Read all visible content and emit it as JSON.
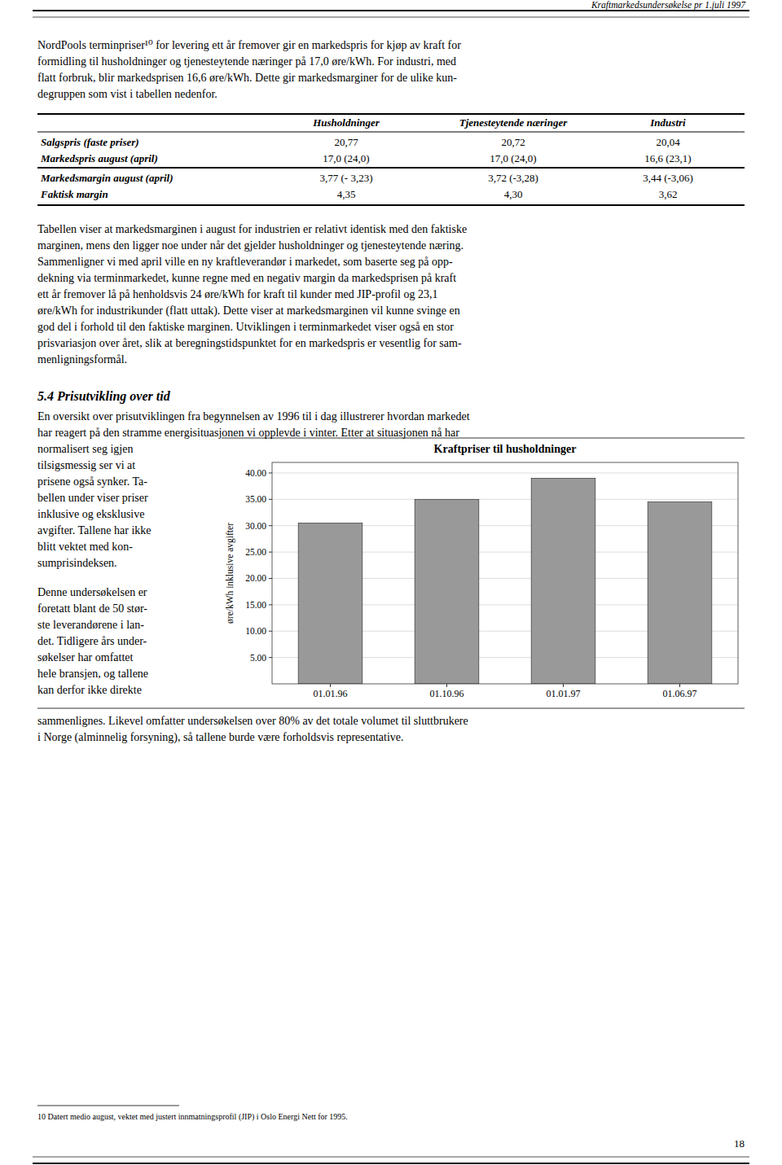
{
  "header_text": "Kraftmarkedsundersøkelse pr 1.juli 1997",
  "page_number": "18",
  "intro_lines": [
    "NordPools terminpriser¹⁰ for levering ett år fremover gir en markedspris for kjøp av kraft for",
    "formidling til husholdninger og tjenesteytende næringer på 17,0 øre/kWh. For industri, med",
    "flatt forbruk, blir markedsprisen 16,6 øre/kWh. Dette gir markedsmarginer for de ulike kun-",
    "degruppen som vist i tabellen nedenfor."
  ],
  "table": {
    "col_headers": [
      "Husholdninger",
      "Tjenesteytende næringer",
      "Industri"
    ],
    "rows": [
      {
        "label": "Salgspris (faste priser)",
        "hush": "20,77",
        "tjen": "20,72",
        "ind": "20,04"
      },
      {
        "label": "Markedspris august (april)",
        "hush": "17,0 (24,0)",
        "tjen": "17,0 (24,0)",
        "ind": "16,6 (23,1)"
      },
      {
        "label": "Markedsmargin august (april)",
        "hush": "3,77 (- 3,23)",
        "tjen": "3,72 (-3,28)",
        "ind": "3,44 (-3,06)",
        "separator_above": true
      },
      {
        "label": "Faktisk margin",
        "hush": "4,35",
        "tjen": "4,30",
        "ind": "3,62"
      }
    ]
  },
  "body1_lines": [
    "Tabellen viser at markedsmarginen i august for industrien er relativt identisk med den faktiske",
    "marginen, mens den ligger noe under når det gjelder husholdninger og tjenesteytende næring.",
    "Sammenligner vi med april ville en ny kraftleverandør i markedet, som baserte seg på opp-",
    "dekning via terminmarkedet, kunne regne med en negativ margin da markedsprisen på kraft",
    "ett år fremover lå på henholdsvis 24 øre/kWh for kraft til kunder med JIP-profil og 23,1",
    "øre/kWh for industrikunder (flatt uttak). Dette viser at markedsmarginen vil kunne svinge en",
    "god del i forhold til den faktiske marginen. Utviklingen i terminmarkedet viser også en stor",
    "prisvariasjon over året, slik at beregningstidspunktet for en markedspris er vesentlig for sam-",
    "menligningsformål."
  ],
  "section_header": "5.4  Prisutvikling over tid",
  "sec_para_lines": [
    "En oversikt over prisutviklingen fra begynnelsen av 1996 til i dag illustrerer hvordan markedet",
    "har reagert på den stramme energisituasjonen vi opplevde i vinter. Etter at situasjonen nå har"
  ],
  "left_col_lines_1": [
    "normalisert seg igjen",
    "tilsigsmessig ser vi at",
    "prisene også synker. Ta-",
    "bellen under viser priser",
    "inklusive og eksklusive",
    "avgifter. Tallene har ikke",
    "blitt vektet med kon-",
    "sumprisindeksen."
  ],
  "left_col_lines_2": [
    "Denne undersøkelsen er",
    "foretatt blant de 50 stør-",
    "ste leverandørene i lan-",
    "det. Tidligere års under-",
    "søkelser har omfattet",
    "hele bransjen, og tallene",
    "kan derfor ikke direkte"
  ],
  "bottom_lines": [
    "sammenlignes. Likevel omfatter undersøkelsen over 80% av det totale volumet til sluttbrukere",
    "i Norge (alminnelig forsyning), så tallene burde være forholdsvis representative."
  ],
  "footnote": "10 Datert medio august, vektet med justert innmatningsprofil (JIP) i Oslo Energi Nett for 1995.",
  "chart_data": {
    "type": "bar",
    "title": "Kraftpriser til husholdninger",
    "ylabel": "øre/kWh inklusive avgifter",
    "categories": [
      "01.01.96",
      "01.10.96",
      "01.01.97",
      "01.06.97"
    ],
    "values": [
      30.5,
      35.0,
      39.0,
      34.5
    ],
    "color": "#999999",
    "ylim": [
      0,
      42
    ],
    "yticks": [
      {
        "value": 5.0,
        "label": "5.00"
      },
      {
        "value": 10.0,
        "label": "10.00"
      },
      {
        "value": 15.0,
        "label": "15.00"
      },
      {
        "value": 20.0,
        "label": "20.00"
      },
      {
        "value": 25.0,
        "label": "25.00"
      },
      {
        "value": 30.0,
        "label": "30.00"
      },
      {
        "value": 35.0,
        "label": "35.00"
      },
      {
        "value": 40.0,
        "label": "40.00"
      }
    ],
    "grid": true
  }
}
